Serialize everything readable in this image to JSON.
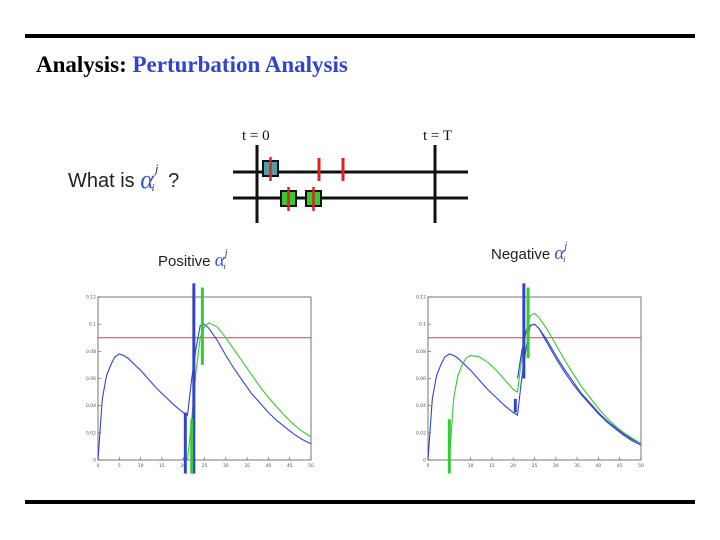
{
  "slide": {
    "title_lead": "Analysis:",
    "title_rest": "Perturbation Analysis",
    "question_prefix": "What is",
    "question_suffix": "?",
    "alpha_symbol": "α",
    "alpha_sup": "j",
    "alpha_sub": "i",
    "timeline": {
      "t_start_label": "t = 0",
      "t_end_label": "t = T"
    },
    "left_label_word": "Positive",
    "right_label_word": "Negative"
  },
  "colors": {
    "title_accent": "#3344cc",
    "blue_series": "#3344cc",
    "green_series": "#33cc33",
    "reference_line": "#aa5555",
    "red_tick": "#dd2222"
  },
  "chart_data": [
    {
      "type": "line",
      "name_label": "Positive α_i^j",
      "xlim": [
        0,
        50
      ],
      "ylim": [
        0,
        0.12
      ],
      "xticks": [
        0,
        5,
        10,
        15,
        20,
        25,
        30,
        35,
        40,
        45,
        50
      ],
      "yticks": [
        0,
        0.02,
        0.04,
        0.06,
        0.08,
        0.1,
        0.12
      ],
      "xticklabels": [
        "0",
        "5",
        "10",
        "15",
        "20",
        "25",
        "30",
        "35",
        "40",
        "45",
        "50"
      ],
      "yticklabels": [
        "0",
        "0.02",
        "0.04",
        "0.06",
        "0.08",
        "0.1",
        "0.12"
      ],
      "reference_y": 0.09,
      "series": [
        {
          "color": "blue",
          "x": [
            0,
            1,
            2,
            3,
            4,
            5,
            6,
            7,
            8,
            10,
            12,
            14,
            16,
            18,
            20,
            21,
            22,
            23,
            24,
            25,
            26,
            28,
            30,
            32,
            34,
            36,
            38,
            40,
            42,
            44,
            46,
            48,
            50
          ],
          "y": [
            0,
            0.045,
            0.062,
            0.07,
            0.076,
            0.078,
            0.077,
            0.075,
            0.072,
            0.066,
            0.059,
            0.052,
            0.046,
            0.04,
            0.035,
            0.033,
            0.06,
            0.082,
            0.099,
            0.1,
            0.097,
            0.088,
            0.077,
            0.067,
            0.058,
            0.049,
            0.042,
            0.035,
            0.029,
            0.024,
            0.019,
            0.015,
            0.012
          ]
        },
        {
          "color": "green",
          "x": [
            21,
            22,
            23,
            24,
            25,
            26,
            28,
            30,
            32,
            34,
            36,
            38,
            40,
            42,
            44,
            46,
            48,
            50
          ],
          "y": [
            0,
            0.03,
            0.065,
            0.09,
            0.098,
            0.101,
            0.098,
            0.09,
            0.081,
            0.072,
            0.063,
            0.054,
            0.046,
            0.039,
            0.032,
            0.026,
            0.021,
            0.017
          ]
        }
      ],
      "vertical_markers": [
        {
          "color": "blue",
          "x": 22.5,
          "y_from": -0.01,
          "y_to": 0.13
        },
        {
          "color": "blue",
          "x": 20.5,
          "y_from": -0.01,
          "y_to": 0.035
        },
        {
          "color": "green",
          "x": 24.5,
          "y_from": 0.07,
          "y_to": 0.127
        },
        {
          "color": "green",
          "x": 22.0,
          "y_from": -0.01,
          "y_to": 0.03
        }
      ]
    },
    {
      "type": "line",
      "name_label": "Negative α_i^j",
      "xlim": [
        0,
        50
      ],
      "ylim": [
        0,
        0.12
      ],
      "xticks": [
        0,
        5,
        10,
        15,
        20,
        25,
        30,
        35,
        40,
        45,
        50
      ],
      "yticks": [
        0,
        0.02,
        0.04,
        0.06,
        0.08,
        0.1,
        0.12
      ],
      "xticklabels": [
        "0",
        "5",
        "10",
        "15",
        "20",
        "25",
        "30",
        "35",
        "40",
        "45",
        "50"
      ],
      "yticklabels": [
        "0",
        "0.02",
        "0.04",
        "0.06",
        "0.08",
        "0.1",
        "0.12"
      ],
      "reference_y": 0.09,
      "series": [
        {
          "color": "blue",
          "x": [
            0,
            1,
            2,
            3,
            4,
            5,
            6,
            7,
            8,
            10,
            12,
            14,
            16,
            18,
            20,
            21,
            22,
            23,
            24,
            25,
            26,
            28,
            30,
            32,
            34,
            36,
            38,
            40,
            42,
            44,
            46,
            48,
            50
          ],
          "y": [
            0,
            0.045,
            0.062,
            0.07,
            0.076,
            0.078,
            0.077,
            0.075,
            0.072,
            0.066,
            0.059,
            0.052,
            0.046,
            0.04,
            0.035,
            0.033,
            0.06,
            0.082,
            0.099,
            0.1,
            0.097,
            0.088,
            0.077,
            0.067,
            0.058,
            0.049,
            0.042,
            0.035,
            0.029,
            0.024,
            0.019,
            0.015,
            0.012
          ]
        },
        {
          "color": "green",
          "x": [
            5,
            6,
            7,
            8,
            9,
            10,
            12,
            14,
            16,
            18,
            20,
            21,
            22,
            23,
            24,
            25,
            26,
            28,
            30,
            32,
            34,
            36,
            38,
            40,
            42,
            44,
            46,
            48,
            50
          ],
          "y": [
            0,
            0.045,
            0.062,
            0.07,
            0.075,
            0.077,
            0.076,
            0.072,
            0.066,
            0.059,
            0.052,
            0.05,
            0.075,
            0.095,
            0.106,
            0.108,
            0.105,
            0.096,
            0.085,
            0.074,
            0.064,
            0.054,
            0.046,
            0.038,
            0.031,
            0.025,
            0.02,
            0.016,
            0.012
          ]
        },
        {
          "color": "blue",
          "x": [
            21,
            22,
            23,
            24,
            25,
            26,
            28,
            30,
            32,
            34,
            36,
            38,
            40,
            42,
            44,
            46,
            48,
            50
          ],
          "y": [
            0.06,
            0.08,
            0.094,
            0.099,
            0.1,
            0.097,
            0.086,
            0.075,
            0.065,
            0.056,
            0.048,
            0.041,
            0.034,
            0.028,
            0.023,
            0.018,
            0.014,
            0.011
          ]
        }
      ],
      "vertical_markers": [
        {
          "color": "blue",
          "x": 22.5,
          "y_from": 0.06,
          "y_to": 0.13
        },
        {
          "color": "blue",
          "x": 20.5,
          "y_from": 0.035,
          "y_to": 0.045
        },
        {
          "color": "green",
          "x": 23.5,
          "y_from": 0.075,
          "y_to": 0.127
        },
        {
          "color": "green",
          "x": 5.0,
          "y_from": -0.01,
          "y_to": 0.03
        }
      ]
    }
  ]
}
